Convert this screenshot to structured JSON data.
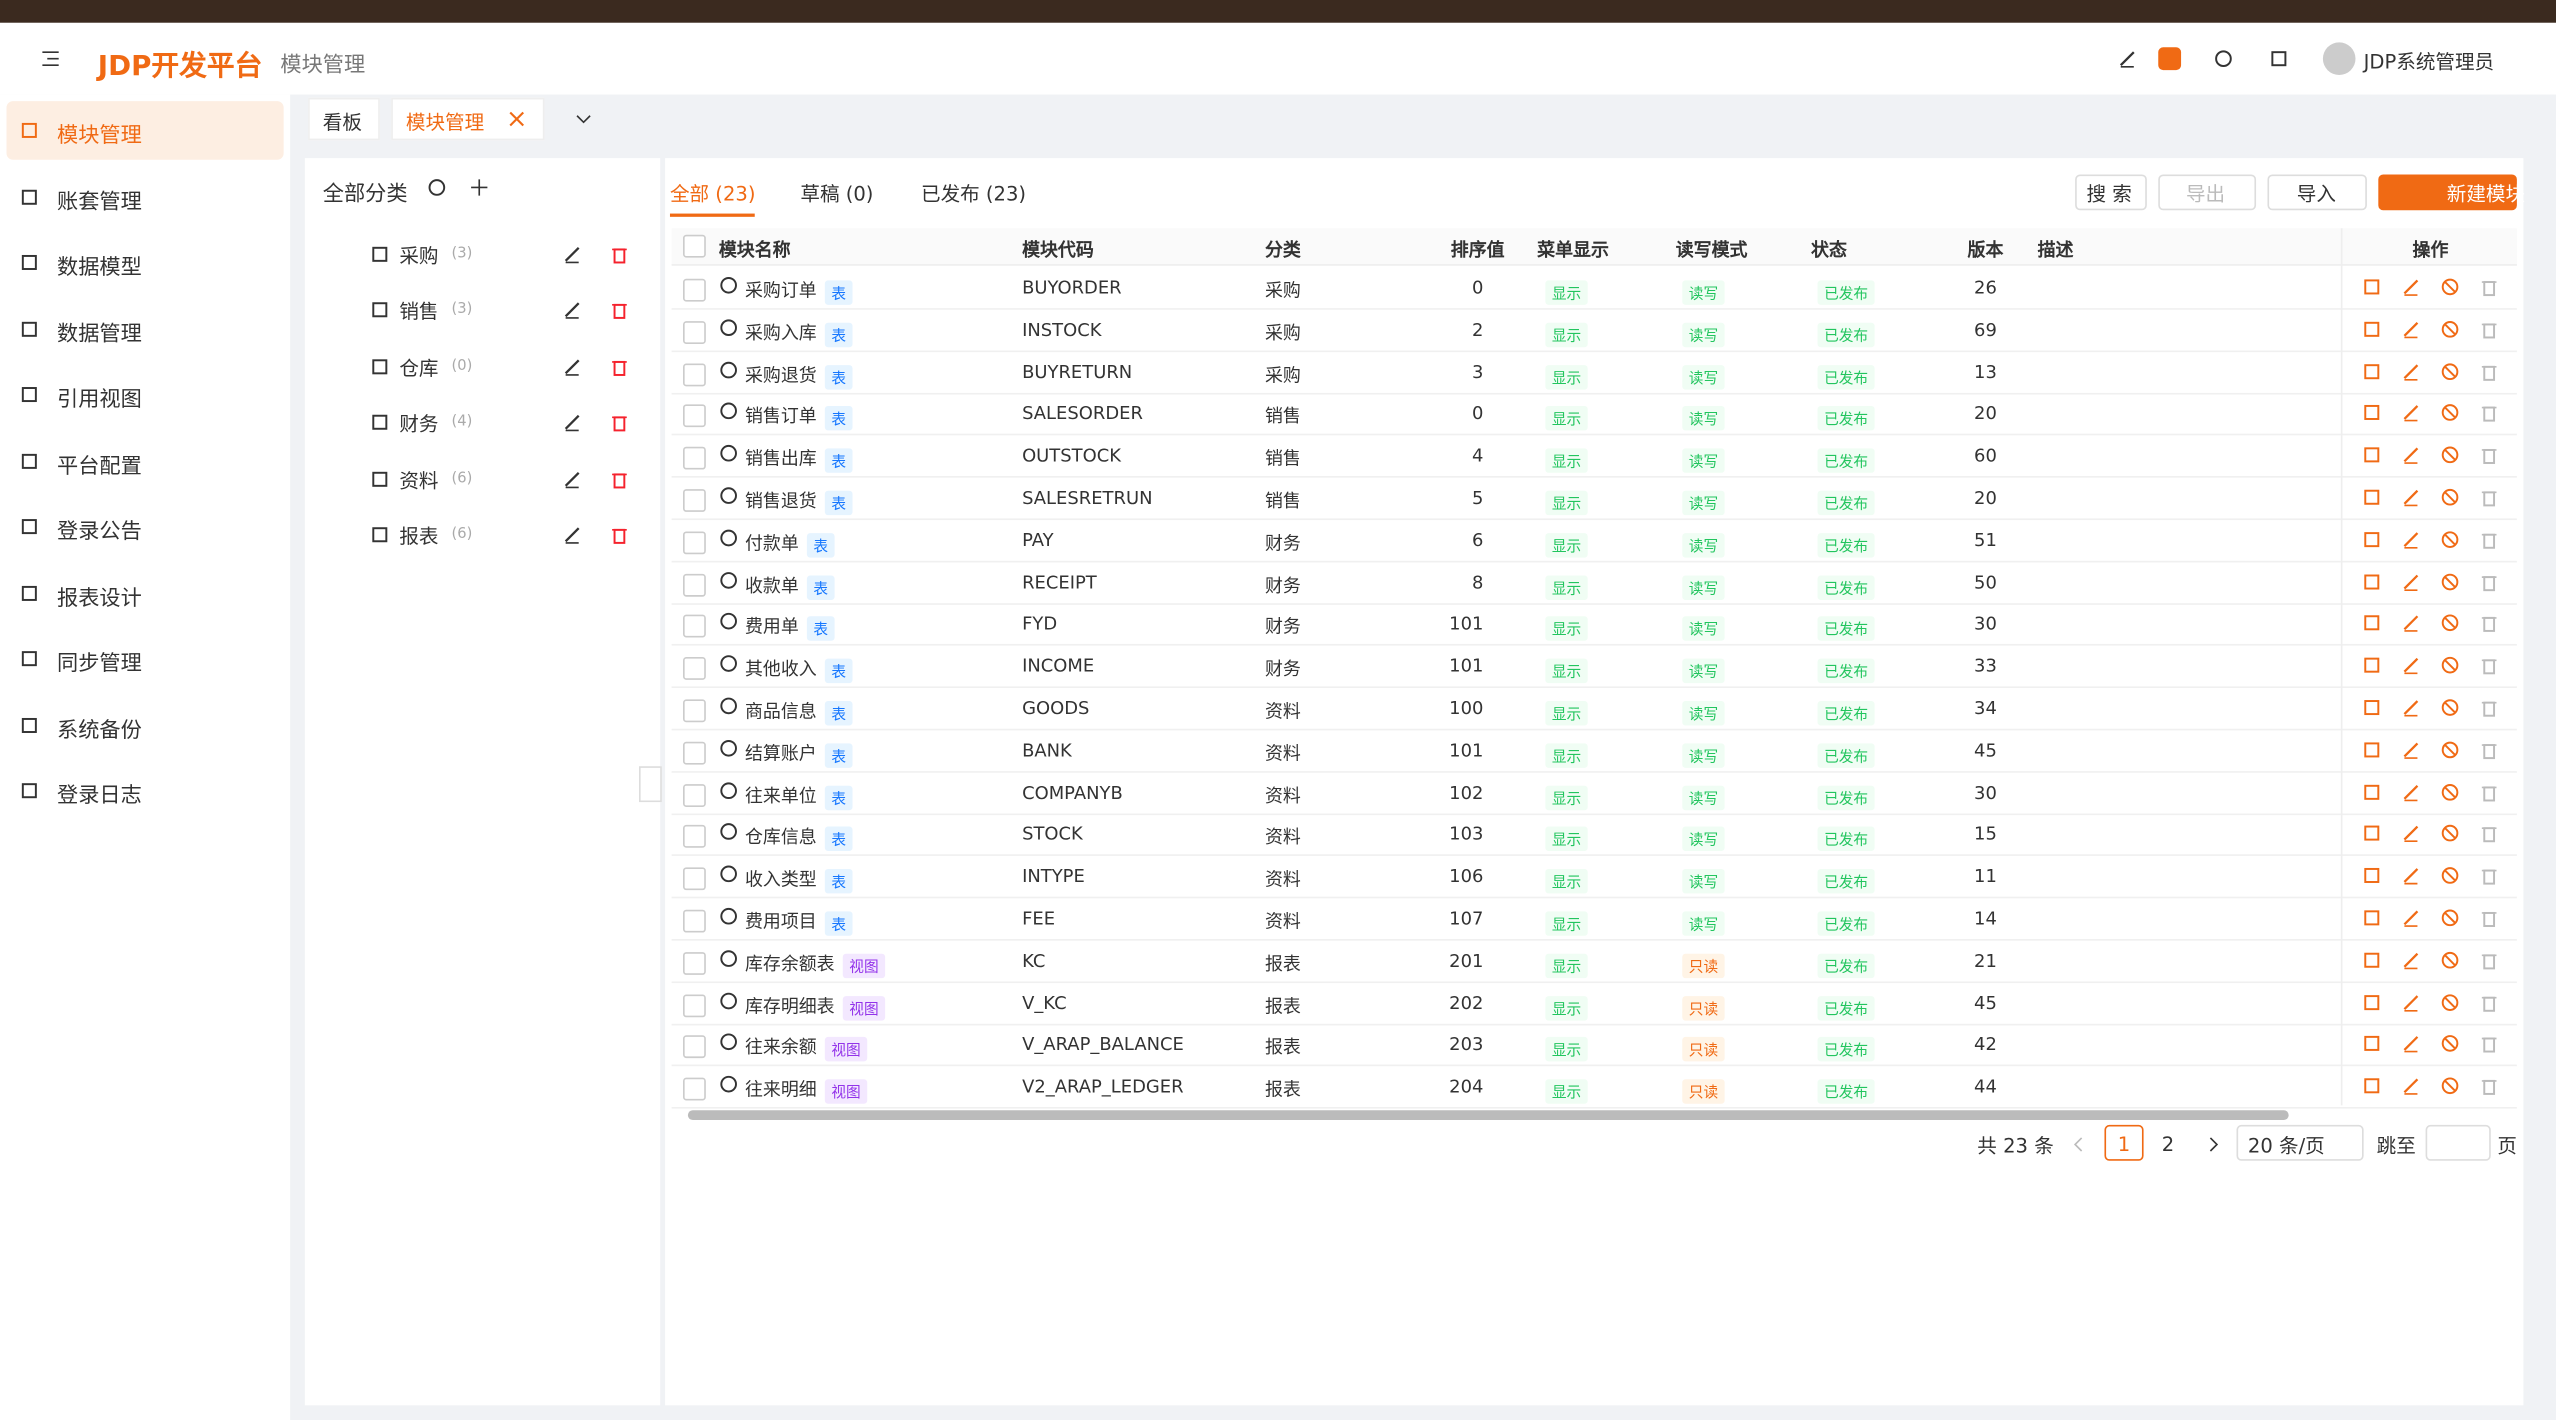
{
  "header": {
    "logo": "JDP开发平台",
    "breadcrumb": "模块管理",
    "user": "JDP系统管理员"
  },
  "sidebar": [
    "模块管理",
    "账套管理",
    "数据模型",
    "数据管理",
    "引用视图",
    "平台配置",
    "登录公告",
    "报表设计",
    "同步管理",
    "系统备份",
    "登录日志"
  ],
  "tabs": [
    "看板",
    "模块管理"
  ],
  "categories": {
    "title": "全部分类",
    "items": [
      {
        "name": "采购",
        "count": "(3)"
      },
      {
        "name": "销售",
        "count": "(3)"
      },
      {
        "name": "仓库",
        "count": "(0)"
      },
      {
        "name": "财务",
        "count": "(4)"
      },
      {
        "name": "资料",
        "count": "(6)"
      },
      {
        "name": "报表",
        "count": "(6)"
      }
    ]
  },
  "filter_tabs": [
    "全部 (23)",
    "草稿 (0)",
    "已发布 (23)"
  ],
  "buttons": [
    "搜 索",
    "导出",
    "导入",
    "新建模块"
  ],
  "table": {
    "columns": [
      "模块名称",
      "模块代码",
      "分类",
      "排序值",
      "菜单显示",
      "读写模式",
      "状态",
      "版本",
      "描述",
      "操作"
    ],
    "rows": [
      [
        "采购订单",
        "表",
        "BUYORDER",
        "采购",
        0,
        "显示",
        "读写",
        "已发布",
        26
      ],
      [
        "采购入库",
        "表",
        "INSTOCK",
        "采购",
        2,
        "显示",
        "读写",
        "已发布",
        69
      ],
      [
        "采购退货",
        "表",
        "BUYRETURN",
        "采购",
        3,
        "显示",
        "读写",
        "已发布",
        13
      ],
      [
        "销售订单",
        "表",
        "SALESORDER",
        "销售",
        0,
        "显示",
        "读写",
        "已发布",
        20
      ],
      [
        "销售出库",
        "表",
        "OUTSTOCK",
        "销售",
        4,
        "显示",
        "读写",
        "已发布",
        60
      ],
      [
        "销售退货",
        "表",
        "SALESRETRUN",
        "销售",
        5,
        "显示",
        "读写",
        "已发布",
        20
      ],
      [
        "付款单",
        "表",
        "PAY",
        "财务",
        6,
        "显示",
        "读写",
        "已发布",
        51
      ],
      [
        "收款单",
        "表",
        "RECEIPT",
        "财务",
        8,
        "显示",
        "读写",
        "已发布",
        50
      ],
      [
        "费用单",
        "表",
        "FYD",
        "财务",
        101,
        "显示",
        "读写",
        "已发布",
        30
      ],
      [
        "其他收入",
        "表",
        "INCOME",
        "财务",
        101,
        "显示",
        "读写",
        "已发布",
        33
      ],
      [
        "商品信息",
        "表",
        "GOODS",
        "资料",
        100,
        "显示",
        "读写",
        "已发布",
        34
      ],
      [
        "结算账户",
        "表",
        "BANK",
        "资料",
        101,
        "显示",
        "读写",
        "已发布",
        45
      ],
      [
        "往来单位",
        "表",
        "COMPANYB",
        "资料",
        102,
        "显示",
        "读写",
        "已发布",
        30
      ],
      [
        "仓库信息",
        "表",
        "STOCK",
        "资料",
        103,
        "显示",
        "读写",
        "已发布",
        15
      ],
      [
        "收入类型",
        "表",
        "INTYPE",
        "资料",
        106,
        "显示",
        "读写",
        "已发布",
        11
      ],
      [
        "费用项目",
        "表",
        "FEE",
        "资料",
        107,
        "显示",
        "读写",
        "已发布",
        14
      ],
      [
        "库存余额表",
        "视图",
        "KC",
        "报表",
        201,
        "显示",
        "只读",
        "已发布",
        21
      ],
      [
        "库存明细表",
        "视图",
        "V_KC",
        "报表",
        202,
        "显示",
        "只读",
        "已发布",
        45
      ],
      [
        "往来余额",
        "视图",
        "V_ARAP_BALANCE",
        "报表",
        203,
        "显示",
        "只读",
        "已发布",
        42
      ],
      [
        "往来明细",
        "视图",
        "V2_ARAP_LEDGER",
        "报表",
        204,
        "显示",
        "只读",
        "已发布",
        44
      ]
    ]
  },
  "pagination": {
    "total": "共 23 条",
    "pages": [
      1,
      2
    ],
    "size": "20 条/页",
    "jump": "跳至",
    "unit": "页"
  }
}
